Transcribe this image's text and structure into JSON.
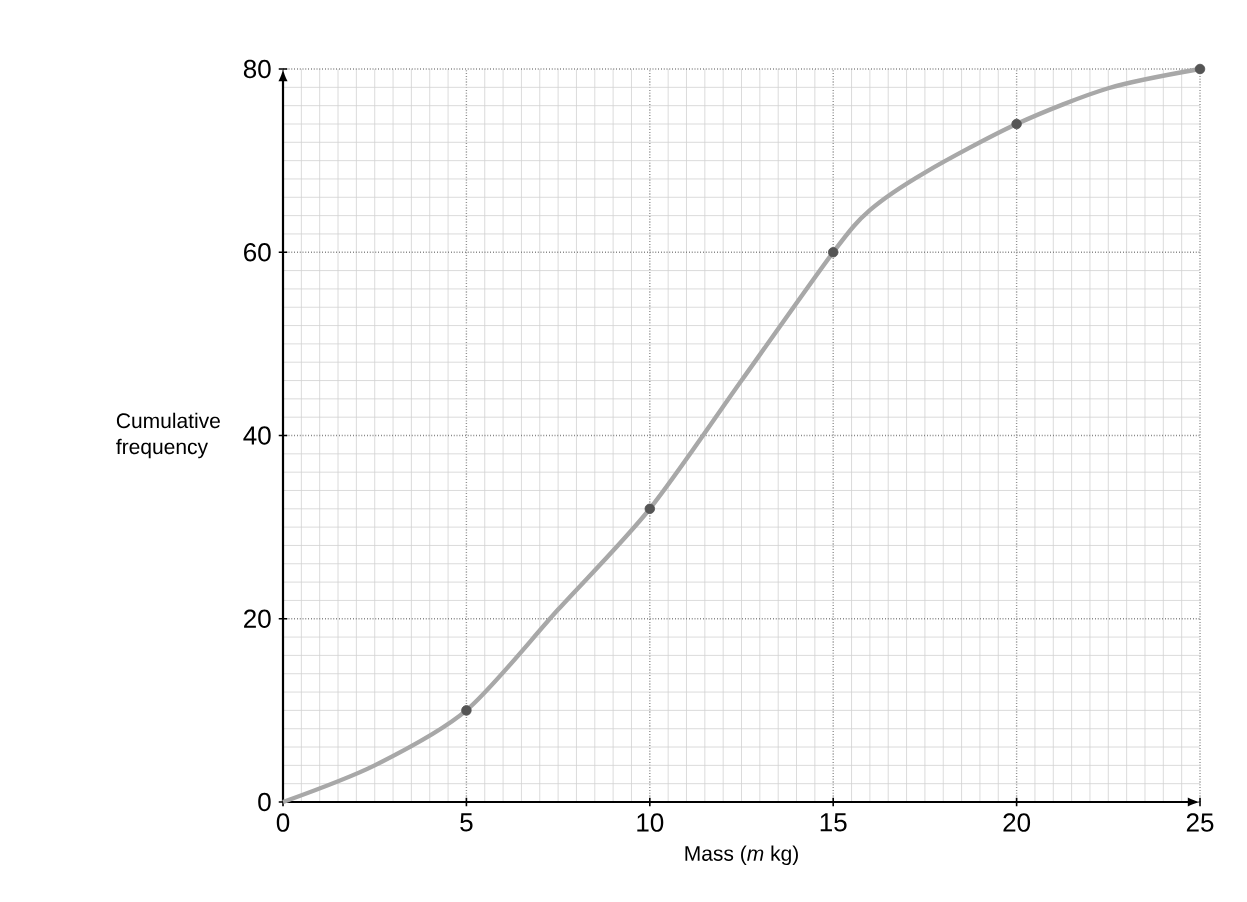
{
  "chart_data": {
    "type": "line",
    "xlabel": "Mass (*m* kg)",
    "ylabel": "Cumulative frequency",
    "series": [
      {
        "color": "#a8a8a8",
        "marker": "none",
        "x": [
          0,
          2.5,
          5,
          7.5,
          10,
          12.5,
          15,
          16,
          17.5,
          20,
          22.5,
          25
        ],
        "values": [
          0,
          4,
          10,
          21,
          32,
          46,
          60,
          64.6,
          68.7,
          74,
          77.9,
          80
        ]
      },
      {
        "type": "scatter",
        "color": "#555555",
        "marker": "circle",
        "x": [
          5,
          10,
          15,
          20,
          25
        ],
        "values": [
          10,
          32,
          60,
          74,
          80
        ]
      }
    ],
    "xlim": [
      0,
      25
    ],
    "ylim": [
      0,
      80
    ],
    "xticks": [
      0,
      5,
      10,
      15,
      20,
      25
    ],
    "yticks": [
      0,
      20,
      40,
      60,
      80
    ],
    "grid": true
  }
}
